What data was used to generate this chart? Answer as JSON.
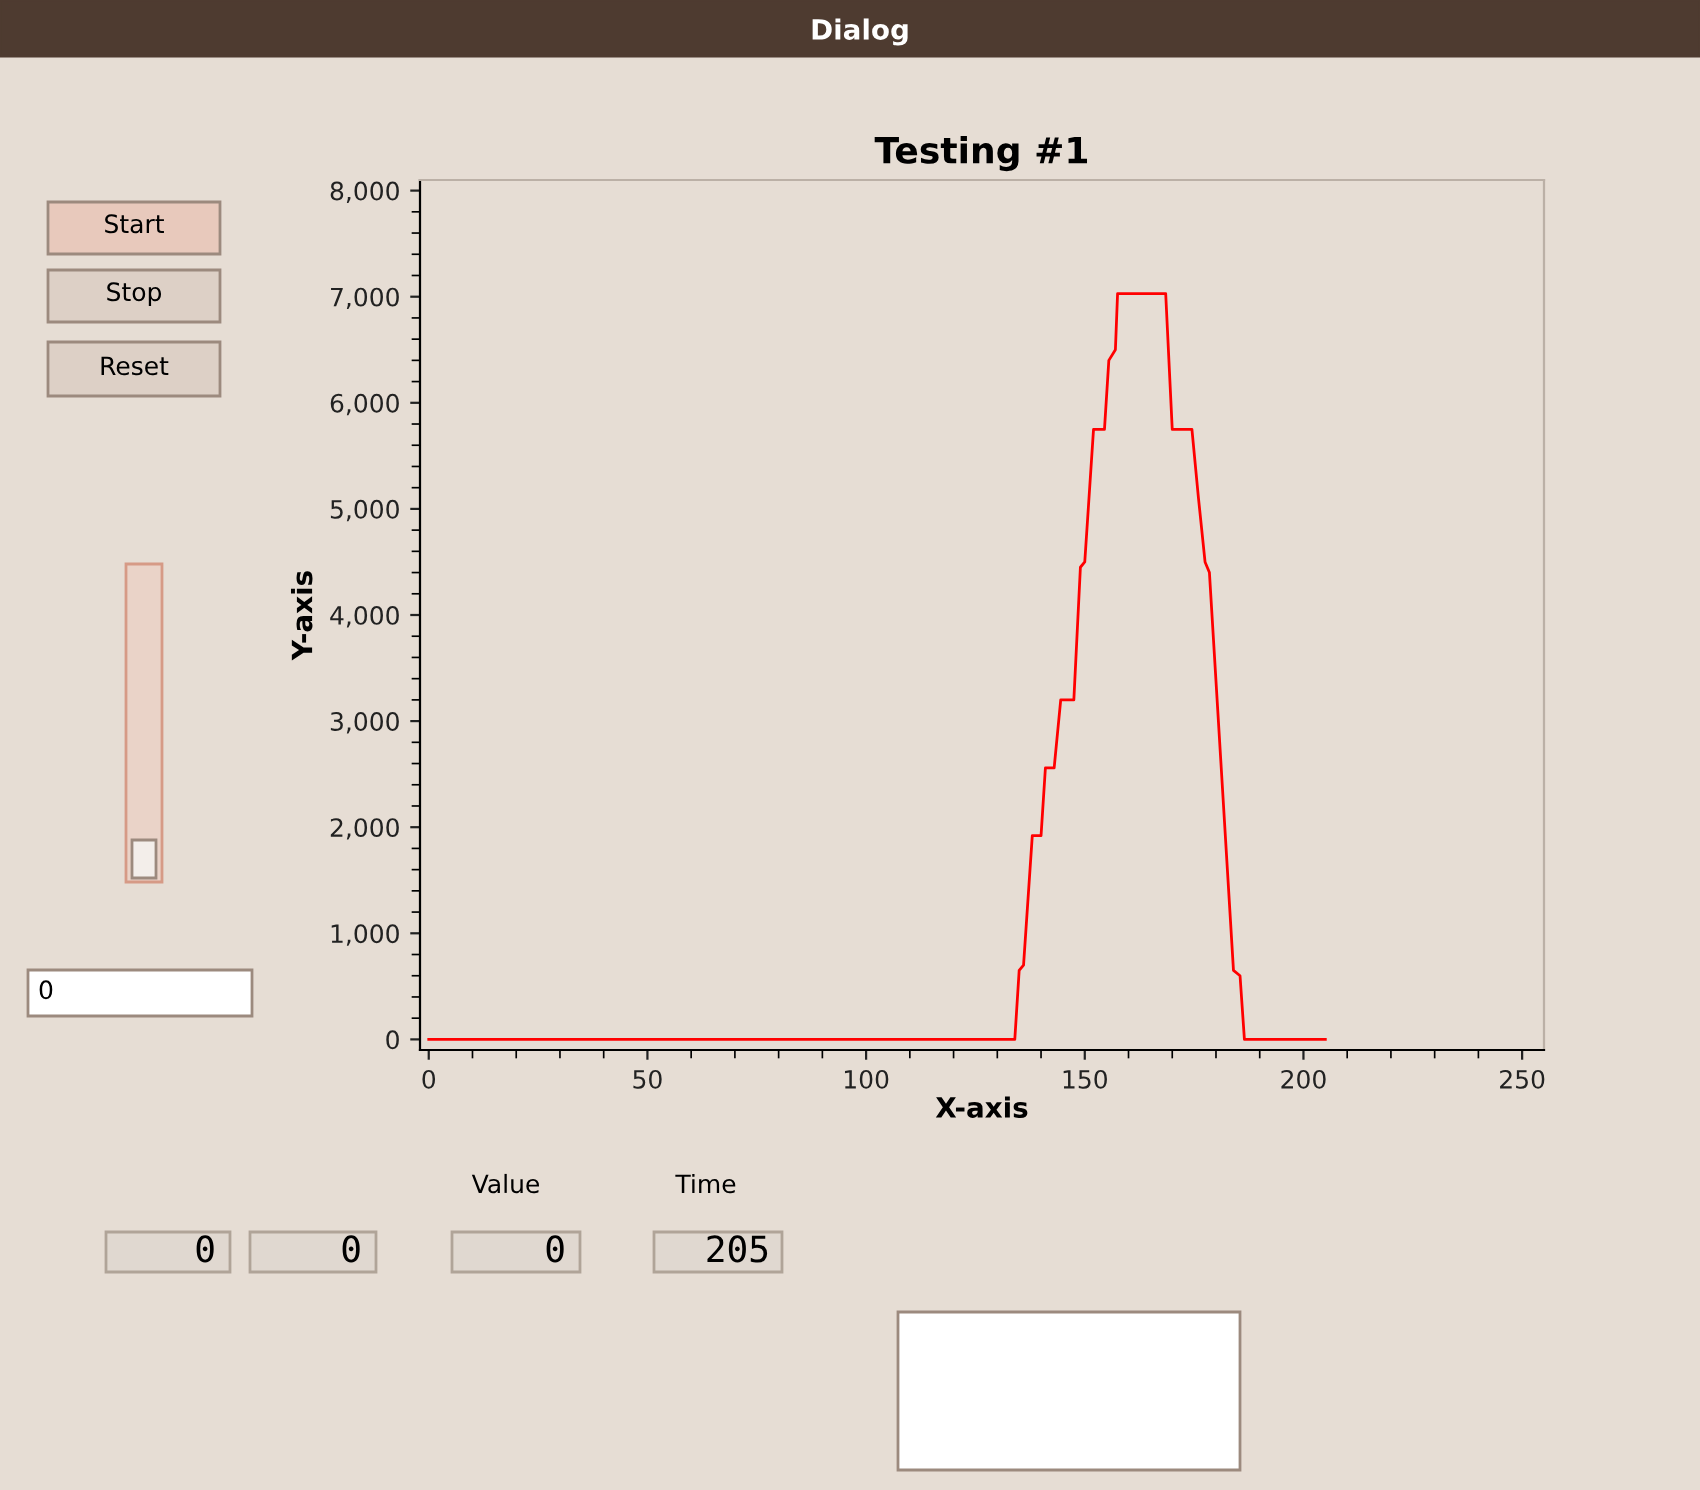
{
  "chart_data": {
    "type": "line",
    "title": "Testing #1",
    "xlabel": "X-axis",
    "ylabel": "Y-axis",
    "x": [
      0,
      134,
      135,
      136,
      138,
      140,
      141,
      143,
      144.5,
      147.5,
      149,
      150,
      152,
      154.5,
      155.5,
      157,
      157.5,
      168.5,
      170,
      174.5,
      176,
      177.5,
      178.5,
      184,
      185.5,
      186.5,
      205
    ],
    "series": [
      {
        "color": "#ff0000",
        "values": [
          0,
          0,
          650,
          700,
          1920,
          1920,
          2560,
          2560,
          3200,
          3200,
          4450,
          4500,
          5750,
          5750,
          6400,
          6500,
          7030,
          7030,
          5750,
          5750,
          5100,
          4500,
          4400,
          650,
          600,
          0,
          0
        ]
      }
    ],
    "xlim": [
      -2,
      255
    ],
    "ylim": [
      -100,
      8100
    ],
    "xticks": [
      0,
      50,
      100,
      150,
      200,
      250
    ],
    "yticks": [
      0,
      {
        "value": 1000,
        "label": "1,000"
      },
      {
        "value": 2000,
        "label": "2,000"
      },
      {
        "value": 3000,
        "label": "3,000"
      },
      {
        "value": 4000,
        "label": "4,000"
      },
      {
        "value": 5000,
        "label": "5,000"
      },
      {
        "value": 6000,
        "label": "6,000"
      },
      {
        "value": 7000,
        "label": "7,000"
      },
      {
        "value": 8000,
        "label": "8,000"
      }
    ],
    "grid": false,
    "legend": false,
    "marker": "none",
    "line_style": "solid",
    "annotations": [
      "Dialog",
      "Start",
      "Stop",
      "Reset",
      "0",
      "0",
      "0",
      "0",
      "205",
      "Value",
      "Time"
    ]
  }
}
